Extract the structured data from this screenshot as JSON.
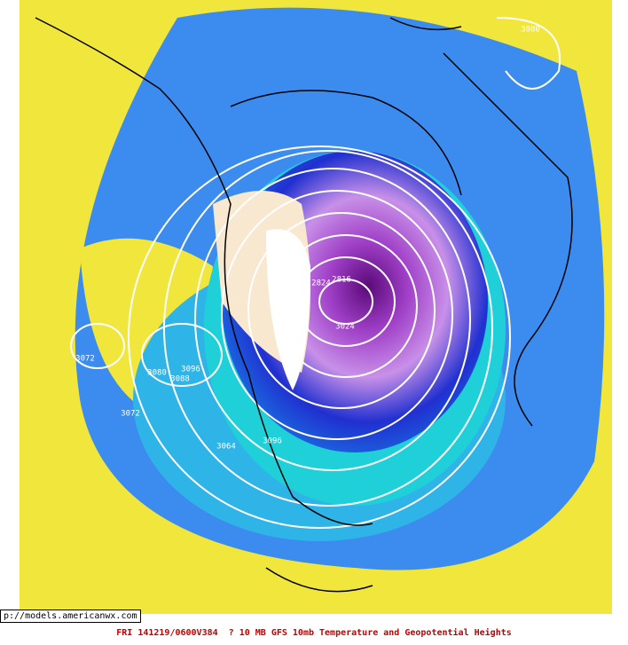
{
  "map": {
    "contour_labels": [
      "3080",
      "3072",
      "3080",
      "3096",
      "3088",
      "3072",
      "3064",
      "3096",
      "2824",
      "2816",
      "3024"
    ],
    "url": "p://models.americanwx.com",
    "caption": "FRI 141219/0600V384  ? 10 MB GFS 10mb Temperature and Geopotential Heights"
  }
}
